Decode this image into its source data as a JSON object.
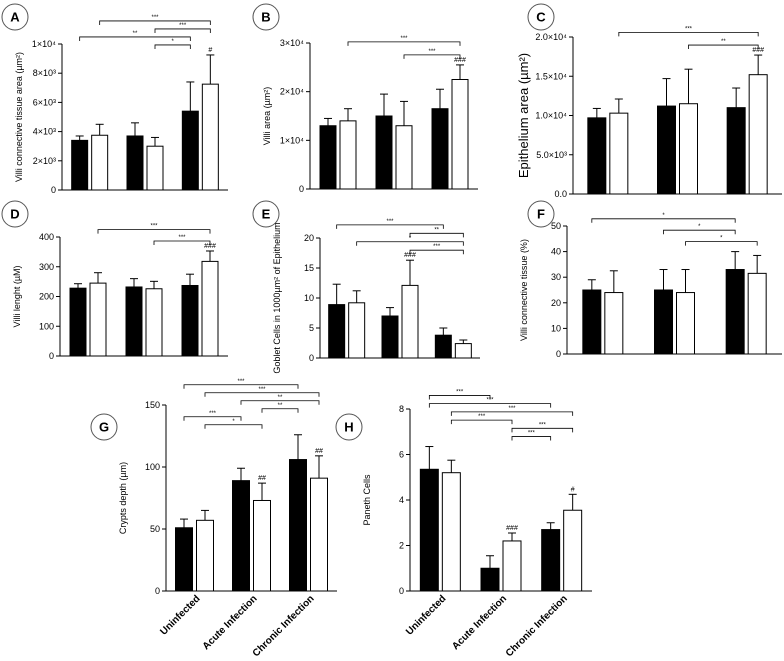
{
  "chart_data": [
    {
      "id": "A",
      "type": "bar",
      "panel_label": "A",
      "ylabel": "Villi connective tissue area (µm²)",
      "ylim": [
        0,
        10000
      ],
      "yticks": [
        0,
        2000,
        4000,
        6000,
        8000,
        10000
      ],
      "ytick_labels": [
        "0",
        "2×10³",
        "4×10³",
        "6×10³",
        "8×10³",
        "1×10⁴"
      ],
      "categories": [
        "Uninfected",
        "Acute Infection",
        "Chronic Infection"
      ],
      "show_category_labels": false,
      "series": [
        {
          "name": "black",
          "values": [
            3400,
            3700,
            5400
          ],
          "errors": [
            300,
            900,
            2000
          ]
        },
        {
          "name": "white",
          "values": [
            3750,
            3000,
            7250
          ],
          "errors": [
            750,
            600,
            2000
          ]
        }
      ],
      "hash_marks": [
        {
          "series": 1,
          "category": 2,
          "text": "#"
        }
      ],
      "brackets": [
        {
          "from": [
            0,
            1
          ],
          "to": [
            2,
            1
          ],
          "label": "***"
        },
        {
          "from": [
            1,
            1
          ],
          "to": [
            2,
            1
          ],
          "label": "***"
        },
        {
          "from": [
            0,
            0
          ],
          "to": [
            2,
            0
          ],
          "label": "**"
        },
        {
          "from": [
            1,
            1
          ],
          "to": [
            2,
            0
          ],
          "label": "*"
        }
      ]
    },
    {
      "id": "B",
      "type": "bar",
      "panel_label": "B",
      "ylabel": "Villi area (µm²)",
      "ylim": [
        0,
        30000
      ],
      "yticks": [
        0,
        10000,
        20000,
        30000
      ],
      "ytick_labels": [
        "0",
        "1×10⁴",
        "2×10⁴",
        "3×10⁴"
      ],
      "categories": [
        "Uninfected",
        "Acute Infection",
        "Chronic Infection"
      ],
      "show_category_labels": false,
      "series": [
        {
          "name": "black",
          "values": [
            13000,
            15000,
            16500
          ],
          "errors": [
            1500,
            4500,
            4000
          ]
        },
        {
          "name": "white",
          "values": [
            14000,
            13000,
            22500
          ],
          "errors": [
            2500,
            5000,
            3000
          ]
        }
      ],
      "hash_marks": [
        {
          "series": 1,
          "category": 2,
          "text": "###"
        }
      ],
      "brackets": [
        {
          "from": [
            0,
            1
          ],
          "to": [
            2,
            1
          ],
          "label": "***"
        },
        {
          "from": [
            1,
            1
          ],
          "to": [
            2,
            1
          ],
          "label": "***"
        }
      ]
    },
    {
      "id": "C",
      "type": "bar",
      "panel_label": "C",
      "ylabel": "Epithelium area (µm²)",
      "ylim": [
        0,
        20000
      ],
      "yticks": [
        0,
        5000,
        10000,
        15000,
        20000
      ],
      "ytick_labels": [
        "0.0",
        "5.0×10³",
        "1.0×10⁴",
        "1.5×10⁴",
        "2.0×10⁴"
      ],
      "categories": [
        "Uninfected",
        "Acute Infection",
        "Chronic Infection"
      ],
      "show_category_labels": false,
      "series": [
        {
          "name": "black",
          "values": [
            9700,
            11200,
            11000
          ],
          "errors": [
            1200,
            3500,
            2500
          ]
        },
        {
          "name": "white",
          "values": [
            10300,
            11500,
            15200
          ],
          "errors": [
            1800,
            4400,
            2500
          ]
        }
      ],
      "hash_marks": [
        {
          "series": 1,
          "category": 2,
          "text": "###"
        }
      ],
      "brackets": [
        {
          "from": [
            0,
            1
          ],
          "to": [
            2,
            1
          ],
          "label": "***"
        },
        {
          "from": [
            1,
            1
          ],
          "to": [
            2,
            1
          ],
          "label": "**"
        }
      ]
    },
    {
      "id": "D",
      "type": "bar",
      "panel_label": "D",
      "ylabel": "Villi lenght (µM)",
      "ylim": [
        0,
        400
      ],
      "yticks": [
        0,
        100,
        200,
        300,
        400
      ],
      "ytick_labels": [
        "0",
        "100",
        "200",
        "300",
        "400"
      ],
      "categories": [
        "Uninfected",
        "Acute Infection",
        "Chronic Infection"
      ],
      "show_category_labels": false,
      "series": [
        {
          "name": "black",
          "values": [
            228,
            232,
            237
          ],
          "errors": [
            15,
            28,
            38
          ]
        },
        {
          "name": "white",
          "values": [
            245,
            226,
            318
          ],
          "errors": [
            35,
            25,
            35
          ]
        }
      ],
      "hash_marks": [
        {
          "series": 1,
          "category": 2,
          "text": "###"
        }
      ],
      "brackets": [
        {
          "from": [
            0,
            1
          ],
          "to": [
            2,
            1
          ],
          "label": "***"
        },
        {
          "from": [
            1,
            1
          ],
          "to": [
            2,
            1
          ],
          "label": "***"
        }
      ]
    },
    {
      "id": "E",
      "type": "bar",
      "panel_label": "E",
      "ylabel": "Goblet Cells in 1000µm² of Epithelium",
      "ylim": [
        0,
        20
      ],
      "yticks": [
        0,
        5,
        10,
        15,
        20
      ],
      "ytick_labels": [
        "0",
        "5",
        "10",
        "15",
        "20"
      ],
      "categories": [
        "Uninfected",
        "Acute Infection",
        "Chronic Infection"
      ],
      "show_category_labels": false,
      "series": [
        {
          "name": "black",
          "values": [
            8.9,
            7.0,
            3.8
          ],
          "errors": [
            3.4,
            1.4,
            1.2
          ]
        },
        {
          "name": "white",
          "values": [
            9.2,
            12.1,
            2.4
          ],
          "errors": [
            2.0,
            4.2,
            0.6
          ]
        }
      ],
      "hash_marks": [
        {
          "series": 1,
          "category": 1,
          "text": "###"
        }
      ],
      "brackets": [
        {
          "from": [
            0,
            0
          ],
          "to": [
            2,
            0
          ],
          "label": "***"
        },
        {
          "from": [
            1,
            1
          ],
          "to": [
            2,
            1
          ],
          "label": "**"
        },
        {
          "from": [
            0,
            1
          ],
          "to": [
            2,
            1
          ],
          "label": "*"
        },
        {
          "from": [
            1,
            1
          ],
          "to": [
            2,
            1
          ],
          "label": "***"
        }
      ]
    },
    {
      "id": "F",
      "type": "bar",
      "panel_label": "F",
      "ylabel": "Villi connective tissue (%)",
      "ylim": [
        0,
        50
      ],
      "yticks": [
        0,
        10,
        20,
        30,
        40,
        50
      ],
      "ytick_labels": [
        "0",
        "10",
        "20",
        "30",
        "40",
        "50"
      ],
      "categories": [
        "Uninfected",
        "Acute Infection",
        "Chronic Infection"
      ],
      "show_category_labels": false,
      "series": [
        {
          "name": "black",
          "values": [
            25,
            25,
            33
          ],
          "errors": [
            4,
            8,
            7
          ]
        },
        {
          "name": "white",
          "values": [
            24,
            24,
            31.5
          ],
          "errors": [
            8.5,
            9,
            7
          ]
        }
      ],
      "hash_marks": [],
      "brackets": [
        {
          "from": [
            0,
            0
          ],
          "to": [
            2,
            0
          ],
          "label": "*"
        },
        {
          "from": [
            1,
            0
          ],
          "to": [
            2,
            0
          ],
          "label": "*"
        },
        {
          "from": [
            1,
            1
          ],
          "to": [
            2,
            1
          ],
          "label": "*"
        }
      ]
    },
    {
      "id": "G",
      "type": "bar",
      "panel_label": "G",
      "ylabel": "Crypts depth (µm)",
      "ylim": [
        0,
        150
      ],
      "yticks": [
        0,
        50,
        100,
        150
      ],
      "ytick_labels": [
        "0",
        "50",
        "100",
        "150"
      ],
      "categories": [
        "Uninfected",
        "Acute Infection",
        "Chronic Infection"
      ],
      "show_category_labels": true,
      "series": [
        {
          "name": "black",
          "values": [
            51,
            89,
            106
          ],
          "errors": [
            7,
            10,
            20
          ]
        },
        {
          "name": "white",
          "values": [
            57,
            73,
            91
          ],
          "errors": [
            8,
            14,
            18
          ]
        }
      ],
      "hash_marks": [
        {
          "series": 1,
          "category": 1,
          "text": "##"
        },
        {
          "series": 1,
          "category": 2,
          "text": "##"
        }
      ],
      "brackets": [
        {
          "from": [
            0,
            0
          ],
          "to": [
            2,
            0
          ],
          "label": "***"
        },
        {
          "from": [
            0,
            1
          ],
          "to": [
            2,
            1
          ],
          "label": "***"
        },
        {
          "from": [
            1,
            0
          ],
          "to": [
            2,
            1
          ],
          "label": "**"
        },
        {
          "from": [
            1,
            1
          ],
          "to": [
            2,
            0
          ],
          "label": "**"
        },
        {
          "from": [
            0,
            0
          ],
          "to": [
            1,
            0
          ],
          "label": "***"
        },
        {
          "from": [
            0,
            1
          ],
          "to": [
            1,
            1
          ],
          "label": "*"
        }
      ]
    },
    {
      "id": "H",
      "type": "bar",
      "panel_label": "H",
      "ylabel": "Paneth Cells",
      "ylim": [
        0,
        8
      ],
      "yticks": [
        0,
        2,
        4,
        6,
        8
      ],
      "ytick_labels": [
        "0",
        "2",
        "4",
        "6",
        "8"
      ],
      "categories": [
        "Uninfected",
        "Acute Infection",
        "Chronic Infection"
      ],
      "show_category_labels": true,
      "series": [
        {
          "name": "black",
          "values": [
            5.35,
            1.0,
            2.7
          ],
          "errors": [
            1.0,
            0.55,
            0.3
          ]
        },
        {
          "name": "white",
          "values": [
            5.2,
            2.2,
            3.55
          ],
          "errors": [
            0.55,
            0.35,
            0.7
          ]
        }
      ],
      "hash_marks": [
        {
          "series": 1,
          "category": 1,
          "text": "###"
        },
        {
          "series": 1,
          "category": 2,
          "text": "#"
        }
      ],
      "brackets": [
        {
          "from": [
            0,
            0
          ],
          "to": [
            1,
            0
          ],
          "label": "***"
        },
        {
          "from": [
            0,
            0
          ],
          "to": [
            2,
            0
          ],
          "label": "***"
        },
        {
          "from": [
            0,
            1
          ],
          "to": [
            2,
            1
          ],
          "label": "***"
        },
        {
          "from": [
            0,
            1
          ],
          "to": [
            1,
            1
          ],
          "label": "***"
        },
        {
          "from": [
            1,
            1
          ],
          "to": [
            2,
            1
          ],
          "label": "***"
        },
        {
          "from": [
            1,
            1
          ],
          "to": [
            2,
            0
          ],
          "label": "***"
        }
      ]
    }
  ]
}
